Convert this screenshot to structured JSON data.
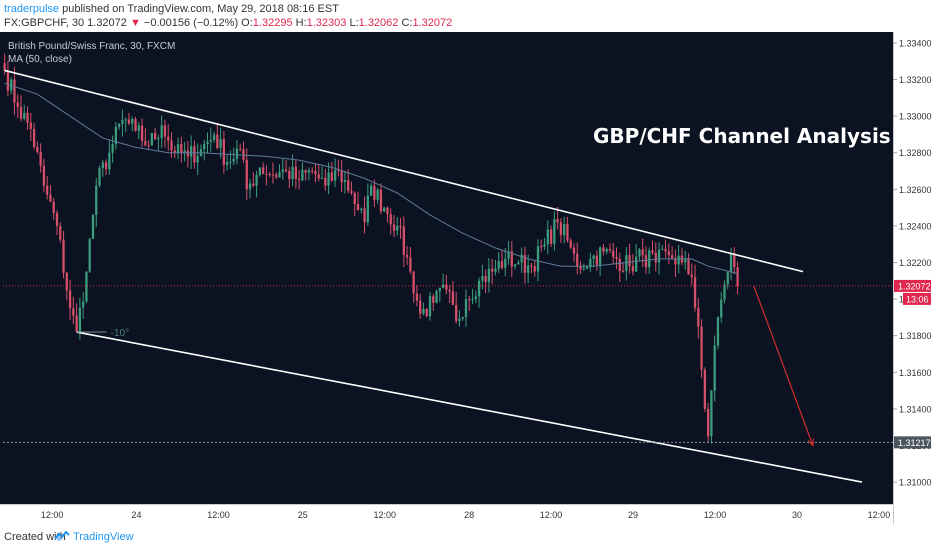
{
  "header": {
    "author": "traderpulse",
    "published_text": "published on TradingView.com, May 29, 2018 08:16 EST",
    "symbol": "FX:GBPCHF, 30",
    "price": "1.32072",
    "change": "−0.00156 (−0.12%)",
    "ohlc": [
      {
        "label": "O:",
        "value": "1.32295"
      },
      {
        "label": "H:",
        "value": "1.32303"
      },
      {
        "label": "L:",
        "value": "1.32062"
      },
      {
        "label": "C:",
        "value": "1.32072"
      }
    ]
  },
  "legend": {
    "instrument": "British Pound/Swiss Franc, 30, FXCM",
    "indicator": "MA (50, close)"
  },
  "chart_data": {
    "type": "candlestick",
    "title": "GBP/CHF Channel Analysis",
    "y_ticks": [
      "1.33400",
      "1.33200",
      "1.33000",
      "1.32800",
      "1.32600",
      "1.32400",
      "1.32200",
      "1.32000",
      "1.31800",
      "1.31600",
      "1.31400",
      "1.31200",
      "1.31000"
    ],
    "ylim": [
      1.3088,
      1.3346
    ],
    "x_ticks": [
      "12:00",
      "24",
      "12:00",
      "25",
      "12:00",
      "28",
      "12:00",
      "29",
      "12:00",
      "30",
      "12:00"
    ],
    "price_label": "1.32072",
    "countdown_label": "13:06",
    "level_label": "1.31217",
    "level_value": 1.31217,
    "current_price": 1.32072,
    "angle_labels": [
      "-10°"
    ],
    "candle_anchors": [
      [
        0,
        1.3325
      ],
      [
        4,
        1.3305
      ],
      [
        8,
        1.3293
      ],
      [
        12,
        1.3262
      ],
      [
        16,
        1.324
      ],
      [
        20,
        1.3195
      ],
      [
        22,
        1.3182
      ],
      [
        25,
        1.3215
      ],
      [
        28,
        1.3262
      ],
      [
        32,
        1.328
      ],
      [
        36,
        1.3298
      ],
      [
        40,
        1.3292
      ],
      [
        44,
        1.3284
      ],
      [
        48,
        1.3295
      ],
      [
        52,
        1.328
      ],
      [
        56,
        1.3278
      ],
      [
        60,
        1.3282
      ],
      [
        64,
        1.329
      ],
      [
        68,
        1.3275
      ],
      [
        72,
        1.3282
      ],
      [
        74,
        1.326
      ],
      [
        78,
        1.3272
      ],
      [
        82,
        1.3268
      ],
      [
        86,
        1.327
      ],
      [
        90,
        1.3265
      ],
      [
        94,
        1.327
      ],
      [
        98,
        1.3262
      ],
      [
        102,
        1.327
      ],
      [
        106,
        1.3258
      ],
      [
        110,
        1.3242
      ],
      [
        112,
        1.3262
      ],
      [
        116,
        1.325
      ],
      [
        120,
        1.324
      ],
      [
        124,
        1.3215
      ],
      [
        127,
        1.3192
      ],
      [
        131,
        1.3198
      ],
      [
        135,
        1.3205
      ],
      [
        138,
        1.3188
      ],
      [
        141,
        1.32
      ],
      [
        145,
        1.321
      ],
      [
        149,
        1.3215
      ],
      [
        153,
        1.3222
      ],
      [
        157,
        1.322
      ],
      [
        161,
        1.3218
      ],
      [
        165,
        1.323
      ],
      [
        169,
        1.3242
      ],
      [
        172,
        1.3232
      ],
      [
        175,
        1.3218
      ],
      [
        179,
        1.3222
      ],
      [
        183,
        1.3226
      ],
      [
        187,
        1.3222
      ],
      [
        191,
        1.3218
      ],
      [
        195,
        1.3224
      ],
      [
        199,
        1.322
      ],
      [
        203,
        1.3224
      ],
      [
        207,
        1.322
      ],
      [
        210,
        1.3212
      ],
      [
        212,
        1.3185
      ],
      [
        214,
        1.314
      ],
      [
        215,
        1.3125
      ],
      [
        216,
        1.315
      ],
      [
        218,
        1.319
      ],
      [
        220,
        1.3208
      ],
      [
        222,
        1.3225
      ],
      [
        224,
        1.3207
      ]
    ],
    "ma_anchors": [
      [
        0,
        1.3318
      ],
      [
        10,
        1.3312
      ],
      [
        20,
        1.33
      ],
      [
        30,
        1.3288
      ],
      [
        40,
        1.3283
      ],
      [
        50,
        1.328
      ],
      [
        60,
        1.328
      ],
      [
        70,
        1.3279
      ],
      [
        80,
        1.3278
      ],
      [
        90,
        1.3276
      ],
      [
        100,
        1.3272
      ],
      [
        110,
        1.3266
      ],
      [
        120,
        1.3258
      ],
      [
        130,
        1.3246
      ],
      [
        140,
        1.3236
      ],
      [
        150,
        1.3228
      ],
      [
        160,
        1.3222
      ],
      [
        170,
        1.3218
      ],
      [
        180,
        1.3218
      ],
      [
        190,
        1.322
      ],
      [
        200,
        1.3222
      ],
      [
        210,
        1.3222
      ],
      [
        215,
        1.3218
      ],
      [
        224,
        1.3214
      ]
    ],
    "channel_upper": {
      "from": [
        0,
        1.3325
      ],
      "to": [
        244,
        1.3215
      ]
    },
    "channel_lower": {
      "from": [
        22,
        1.3182
      ],
      "to": [
        262,
        1.31
      ]
    },
    "projection": {
      "from": [
        229,
        1.3207
      ],
      "to": [
        247,
        1.312
      ]
    },
    "colors": {
      "background": "#0b1221",
      "up": "#3c9c7e",
      "down": "#d6506a",
      "channel": "#ffffff",
      "ma": "#5e7b99",
      "projection": "#d32f2f",
      "price_label": "#e0284e",
      "level_label": "#4d5660",
      "axis_text": "#333333"
    }
  },
  "footer": {
    "created_with": "Created with",
    "tv_name": "TradingView"
  }
}
